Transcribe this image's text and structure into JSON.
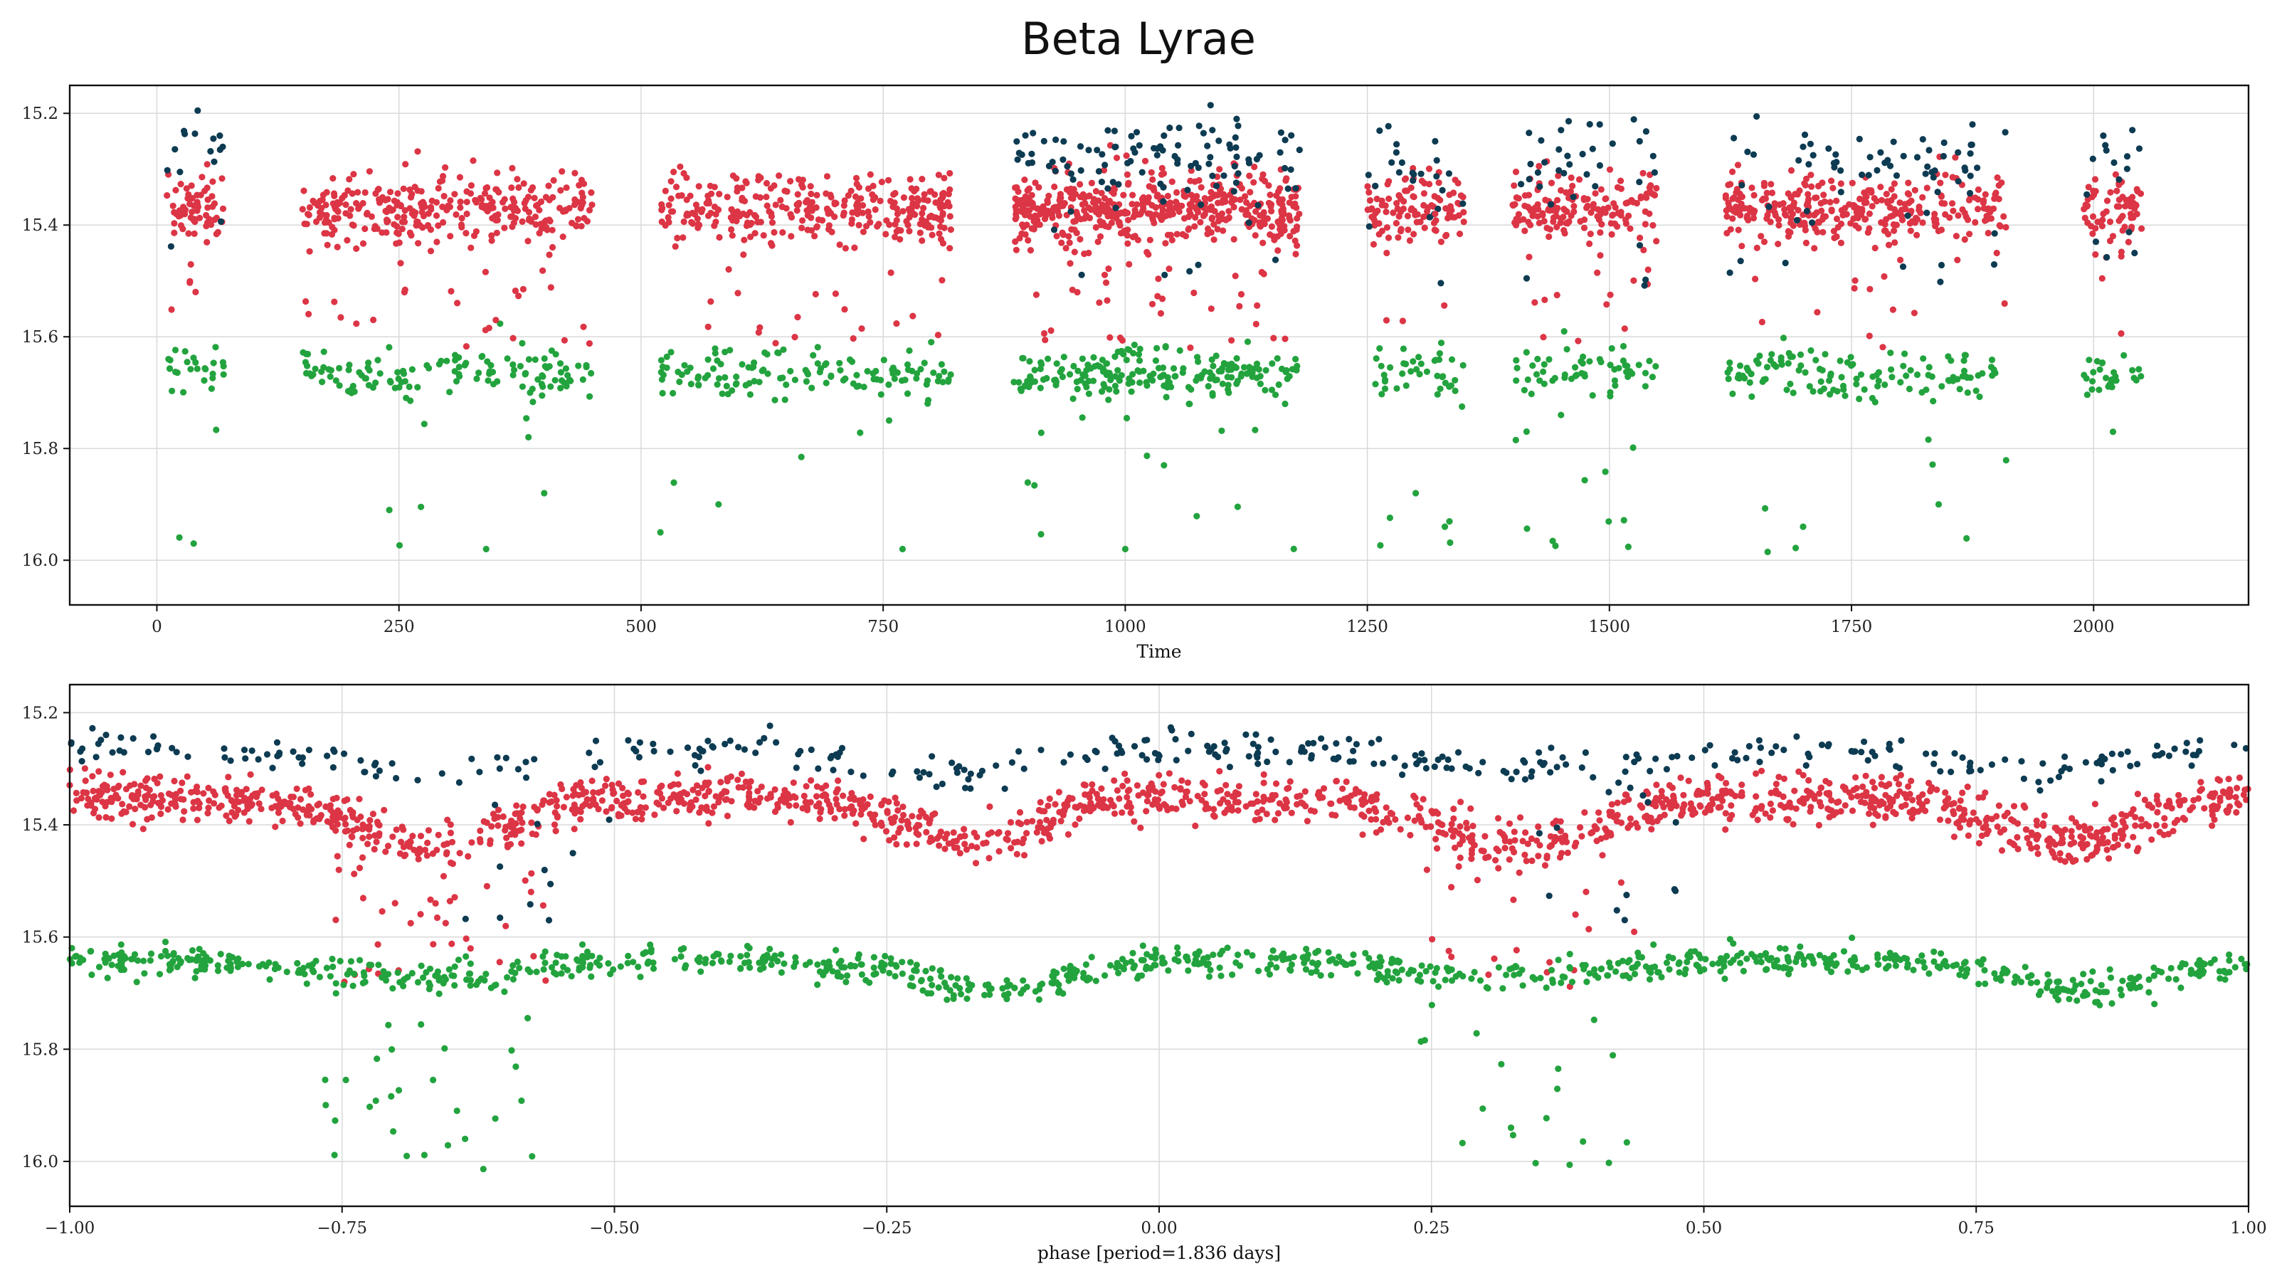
{
  "title": "Beta Lyrae",
  "colors": {
    "band_top": "#0d3b52",
    "band_mid": "#dc3545",
    "band_low": "#23a33e",
    "grid": "#d9d9d9",
    "frame": "#111111"
  },
  "chart_data": [
    {
      "type": "scatter",
      "title": "",
      "xlabel": "Time",
      "ylabel": "",
      "xlim": [
        -90,
        2160
      ],
      "ylim": [
        16.08,
        15.15
      ],
      "y_inverted": true,
      "grid": true,
      "xticks": [
        0,
        250,
        500,
        750,
        1000,
        1250,
        1500,
        1750,
        2000
      ],
      "xtick_labels": [
        "0",
        "250",
        "500",
        "750",
        "1000",
        "1250",
        "1500",
        "1750",
        "2000"
      ],
      "yticks": [
        15.2,
        15.4,
        15.6,
        15.8,
        16.0
      ],
      "ytick_labels": [
        "15.2",
        "15.4",
        "15.6",
        "15.8",
        "16.0"
      ],
      "observing_seasons": [
        [
          10,
          70
        ],
        [
          150,
          450
        ],
        [
          520,
          820
        ],
        [
          885,
          1180
        ],
        [
          1250,
          1350
        ],
        [
          1400,
          1550
        ],
        [
          1620,
          1910
        ],
        [
          1990,
          2050
        ]
      ],
      "series": [
        {
          "name": "upper band (dark)",
          "color": "#0d3b52",
          "typical_mag": [
            15.22,
            15.34
          ]
        },
        {
          "name": "middle band (red)",
          "color": "#dc3545",
          "typical_mag": [
            15.32,
            15.45
          ]
        },
        {
          "name": "lower band (green)",
          "color": "#23a33e",
          "typical_mag": [
            15.62,
            15.72
          ]
        }
      ],
      "sample_points": {
        "upper": [
          [
            65,
            15.24
          ],
          [
            68,
            15.26
          ],
          [
            1010,
            15.27
          ],
          [
            1040,
            15.24
          ],
          [
            1090,
            15.23
          ],
          [
            1115,
            15.21
          ],
          [
            1280,
            15.27
          ],
          [
            1320,
            15.25
          ],
          [
            1450,
            15.23
          ],
          [
            1490,
            15.22
          ],
          [
            1700,
            15.26
          ],
          [
            1780,
            15.27
          ],
          [
            1860,
            15.27
          ],
          [
            2010,
            15.24
          ],
          [
            2040,
            15.23
          ]
        ],
        "middle": [
          [
            20,
            15.38
          ],
          [
            40,
            15.52
          ],
          [
            230,
            15.36
          ],
          [
            320,
            15.34
          ],
          [
            350,
            15.57
          ],
          [
            440,
            15.35
          ],
          [
            560,
            15.4
          ],
          [
            650,
            15.37
          ],
          [
            700,
            15.36
          ],
          [
            790,
            15.39
          ],
          [
            930,
            15.37
          ],
          [
            1010,
            15.38
          ],
          [
            1100,
            15.36
          ],
          [
            1170,
            15.42
          ],
          [
            1270,
            15.45
          ],
          [
            1320,
            15.38
          ],
          [
            1460,
            15.34
          ],
          [
            1540,
            15.48
          ],
          [
            1640,
            15.37
          ],
          [
            1720,
            15.39
          ],
          [
            1800,
            15.36
          ],
          [
            1900,
            15.45
          ],
          [
            2010,
            15.38
          ],
          [
            2040,
            15.35
          ]
        ],
        "lower": [
          [
            12,
            15.64
          ],
          [
            38,
            15.97
          ],
          [
            180,
            15.66
          ],
          [
            240,
            15.91
          ],
          [
            340,
            15.98
          ],
          [
            400,
            15.88
          ],
          [
            520,
            15.95
          ],
          [
            580,
            15.9
          ],
          [
            690,
            15.65
          ],
          [
            770,
            15.98
          ],
          [
            960,
            15.66
          ],
          [
            1000,
            15.98
          ],
          [
            1040,
            15.83
          ],
          [
            1090,
            15.67
          ],
          [
            1300,
            15.88
          ],
          [
            1330,
            15.94
          ],
          [
            1450,
            15.74
          ],
          [
            1700,
            15.94
          ],
          [
            1720,
            15.66
          ],
          [
            1840,
            15.9
          ],
          [
            1870,
            15.7
          ],
          [
            2020,
            15.77
          ],
          [
            2040,
            15.66
          ]
        ]
      }
    },
    {
      "type": "scatter",
      "title": "",
      "xlabel": "phase [period=1.836 days]",
      "ylabel": "",
      "xlim": [
        -1.0,
        1.0
      ],
      "ylim": [
        16.08,
        15.15
      ],
      "y_inverted": true,
      "grid": true,
      "xticks": [
        -1.0,
        -0.75,
        -0.5,
        -0.25,
        0.0,
        0.25,
        0.5,
        0.75,
        1.0
      ],
      "xtick_labels": [
        "−1.00",
        "−0.75",
        "−0.50",
        "−0.25",
        "0.00",
        "0.25",
        "0.50",
        "0.75",
        "1.00"
      ],
      "yticks": [
        15.2,
        15.4,
        15.6,
        15.8,
        16.0
      ],
      "ytick_labels": [
        "15.2",
        "15.4",
        "15.6",
        "15.8",
        "16.0"
      ],
      "period_days": 1.836,
      "series": [
        {
          "name": "upper band (dark)",
          "color": "#0d3b52",
          "baseline_mag": 15.26,
          "secondary_dip_phase": 0.42
        },
        {
          "name": "middle band (red)",
          "color": "#dc3545",
          "baseline_mag": 15.35,
          "primary_eclipse": {
            "phase": 0.33,
            "depth_mag": 0.35
          },
          "secondary_eclipse": {
            "phase": 0.83,
            "depth_mag": 0.08
          }
        },
        {
          "name": "lower band (green)",
          "color": "#23a33e",
          "baseline_mag": 15.64,
          "primary_eclipse": {
            "phase": 0.32,
            "depth_mag": 0.35
          },
          "secondary_eclipse": {
            "phase": 0.85,
            "depth_mag": 0.07
          }
        }
      ]
    }
  ]
}
